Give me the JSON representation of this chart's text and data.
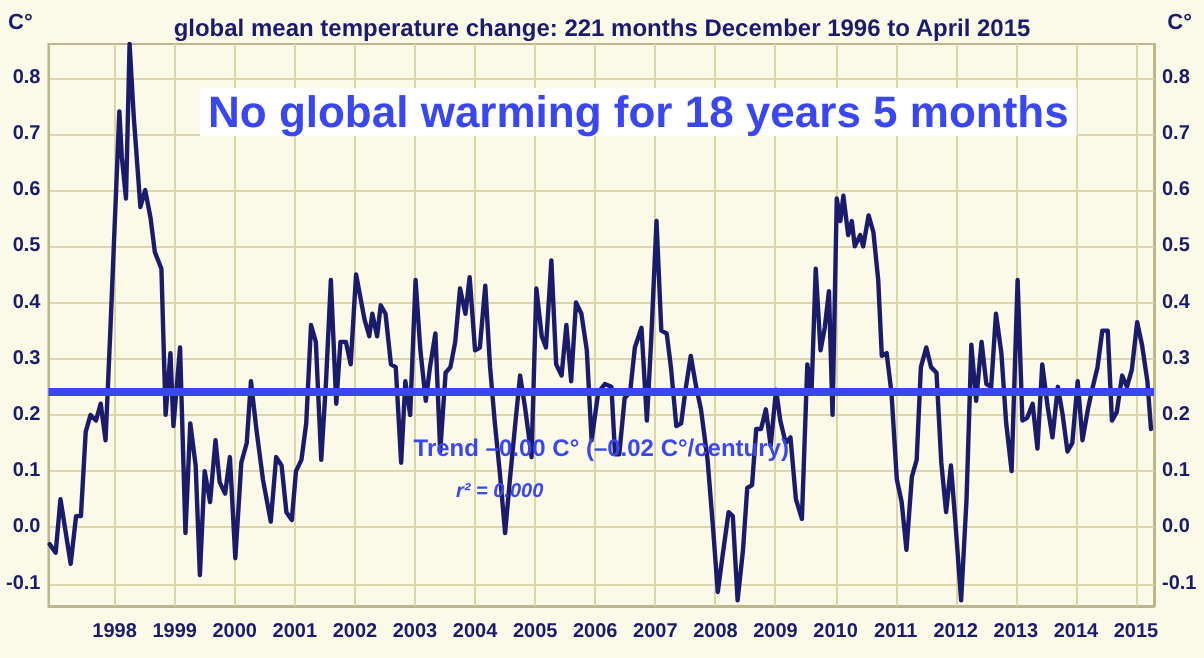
{
  "chart_data": {
    "type": "line",
    "title": "global mean temperature change: 221 months December 1996 to April 2015",
    "subtitle": "No global warming for 18 years 5 months",
    "ylabel": "C°",
    "y2label": "C°",
    "x": [
      1996.92,
      1997.02,
      1997.1,
      1997.27,
      1997.36,
      1997.44,
      1997.52,
      1997.6,
      1997.69,
      1997.77,
      1997.85,
      1997.93,
      1998.08,
      1998.12,
      1998.19,
      1998.25,
      1998.32,
      1998.43,
      1998.51,
      1998.6,
      1998.67,
      1998.78,
      1998.85,
      1998.93,
      1998.98,
      1999.09,
      1999.18,
      1999.26,
      1999.35,
      1999.42,
      1999.5,
      1999.59,
      1999.68,
      1999.75,
      1999.84,
      1999.92,
      2000.01,
      2000.11,
      2000.2,
      2000.27,
      2000.36,
      2000.47,
      2000.6,
      2000.69,
      2000.78,
      2000.86,
      2000.95,
      2001.02,
      2001.11,
      2001.19,
      2001.27,
      2001.35,
      2001.44,
      2001.52,
      2001.6,
      2001.69,
      2001.76,
      2001.85,
      2001.93,
      2002.02,
      2002.09,
      2002.16,
      2002.24,
      2002.29,
      2002.37,
      2002.43,
      2002.51,
      2002.6,
      2002.68,
      2002.77,
      2002.84,
      2002.92,
      2003.01,
      2003.09,
      2003.18,
      2003.25,
      2003.34,
      2003.42,
      2003.51,
      2003.59,
      2003.67,
      2003.75,
      2003.84,
      2003.91,
      2004.0,
      2004.08,
      2004.17,
      2004.25,
      2004.33,
      2004.41,
      2004.5,
      2004.58,
      2004.67,
      2004.75,
      2004.83,
      2004.94,
      2005.02,
      2005.11,
      2005.18,
      2005.27,
      2005.35,
      2005.44,
      2005.52,
      2005.6,
      2005.68,
      2005.77,
      2005.86,
      2005.94,
      2006.05,
      2006.16,
      2006.27,
      2006.33,
      2006.4,
      2006.49,
      2006.58,
      2006.66,
      2006.77,
      2006.86,
      2006.93,
      2007.02,
      2007.1,
      2007.19,
      2007.26,
      2007.35,
      2007.43,
      2007.51,
      2007.59,
      2007.68,
      2007.76,
      2007.87,
      2007.96,
      2008.04,
      2008.12,
      2008.22,
      2008.29,
      2008.37,
      2008.46,
      2008.53,
      2008.61,
      2008.68,
      2008.76,
      2008.84,
      2008.92,
      2009.01,
      2009.08,
      2009.17,
      2009.25,
      2009.34,
      2009.44,
      2009.53,
      2009.6,
      2009.67,
      2009.75,
      2009.82,
      2009.89,
      2009.95,
      2010.02,
      2010.08,
      2010.13,
      2010.21,
      2010.27,
      2010.32,
      2010.41,
      2010.46,
      2010.55,
      2010.63,
      2010.71,
      2010.77,
      2010.85,
      2010.93,
      2011.02,
      2011.1,
      2011.18,
      2011.27,
      2011.35,
      2011.42,
      2011.51,
      2011.59,
      2011.68,
      2011.76,
      2011.84,
      2011.92,
      2011.99,
      2012.09,
      2012.18,
      2012.26,
      2012.34,
      2012.43,
      2012.51,
      2012.59,
      2012.67,
      2012.76,
      2012.84,
      2012.93,
      2013.03,
      2013.11,
      2013.19,
      2013.28,
      2013.36,
      2013.44,
      2013.53,
      2013.61,
      2013.7,
      2013.78,
      2013.86,
      2013.94,
      2014.03,
      2014.11,
      2014.2,
      2014.27,
      2014.36,
      2014.44,
      2014.53,
      2014.6,
      2014.68,
      2014.77,
      2014.85,
      2014.93,
      2015.02,
      2015.1,
      2015.19,
      2015.25
    ],
    "series": [
      {
        "color": "#1b1b6b",
        "values": [
          -0.03,
          -0.045,
          0.05,
          -0.065,
          0.02,
          0.02,
          0.17,
          0.2,
          0.19,
          0.22,
          0.155,
          0.35,
          0.74,
          0.66,
          0.585,
          0.86,
          0.73,
          0.57,
          0.6,
          0.55,
          0.49,
          0.46,
          0.2,
          0.31,
          0.18,
          0.32,
          -0.01,
          0.185,
          0.11,
          -0.085,
          0.1,
          0.045,
          0.155,
          0.08,
          0.06,
          0.125,
          -0.055,
          0.115,
          0.15,
          0.26,
          0.175,
          0.085,
          0.01,
          0.125,
          0.11,
          0.027,
          0.013,
          0.1,
          0.12,
          0.185,
          0.36,
          0.33,
          0.12,
          0.26,
          0.44,
          0.22,
          0.33,
          0.33,
          0.29,
          0.45,
          0.41,
          0.37,
          0.34,
          0.38,
          0.34,
          0.395,
          0.38,
          0.29,
          0.285,
          0.115,
          0.26,
          0.2,
          0.44,
          0.315,
          0.225,
          0.285,
          0.345,
          0.135,
          0.275,
          0.285,
          0.33,
          0.425,
          0.38,
          0.445,
          0.315,
          0.32,
          0.43,
          0.285,
          0.185,
          0.1,
          -0.01,
          0.085,
          0.185,
          0.27,
          0.215,
          0.125,
          0.425,
          0.34,
          0.32,
          0.475,
          0.29,
          0.27,
          0.36,
          0.26,
          0.4,
          0.38,
          0.315,
          0.155,
          0.24,
          0.255,
          0.25,
          0.13,
          0.13,
          0.23,
          0.24,
          0.32,
          0.355,
          0.19,
          0.33,
          0.545,
          0.35,
          0.345,
          0.285,
          0.18,
          0.185,
          0.25,
          0.305,
          0.25,
          0.21,
          0.12,
          0.0,
          -0.115,
          -0.05,
          0.027,
          0.02,
          -0.13,
          -0.04,
          0.07,
          0.075,
          0.175,
          0.175,
          0.21,
          0.145,
          0.245,
          0.19,
          0.15,
          0.16,
          0.05,
          0.015,
          0.29,
          0.24,
          0.46,
          0.315,
          0.355,
          0.42,
          0.2,
          0.585,
          0.545,
          0.59,
          0.52,
          0.545,
          0.5,
          0.52,
          0.5,
          0.555,
          0.525,
          0.44,
          0.305,
          0.31,
          0.24,
          0.085,
          0.045,
          -0.04,
          0.09,
          0.12,
          0.285,
          0.32,
          0.285,
          0.275,
          0.115,
          0.027,
          0.11,
          0.015,
          -0.13,
          0.05,
          0.325,
          0.225,
          0.33,
          0.255,
          0.25,
          0.38,
          0.31,
          0.185,
          0.1,
          0.44,
          0.19,
          0.195,
          0.22,
          0.14,
          0.29,
          0.215,
          0.16,
          0.25,
          0.2,
          0.135,
          0.15,
          0.26,
          0.155,
          0.21,
          0.245,
          0.285,
          0.35,
          0.35,
          0.19,
          0.205,
          0.27,
          0.25,
          0.28,
          0.365,
          0.325,
          0.26,
          0.175
        ]
      }
    ],
    "xlim": [
      1996.9,
      2015.3
    ],
    "xticks": [
      1998,
      1999,
      2000,
      2001,
      2002,
      2003,
      2004,
      2005,
      2006,
      2007,
      2008,
      2009,
      2010,
      2011,
      2012,
      2013,
      2014,
      2015
    ],
    "ylim": [
      -0.14,
      0.86
    ],
    "yticks": [
      -0.1,
      {
        "value": 0,
        "label": "0.0"
      },
      0.1,
      0.2,
      0.3,
      0.4,
      0.5,
      0.6,
      0.7,
      0.8
    ],
    "y2lim": [
      -0.14,
      0.86
    ],
    "y2ticks": [
      -0.1,
      {
        "value": 0,
        "label": "0.0"
      },
      0.1,
      0.2,
      0.3,
      0.4,
      0.5,
      0.6,
      0.7,
      0.8
    ],
    "ref_lines": [
      {
        "axis": "y",
        "value": 0.24,
        "label": "Trend –0.00 C° (–0.02 C°/century)",
        "color": "#3a46ee"
      }
    ],
    "annotations": [
      "r² = 0.000"
    ],
    "grid": true,
    "line_style": "solid",
    "marker": "none"
  }
}
